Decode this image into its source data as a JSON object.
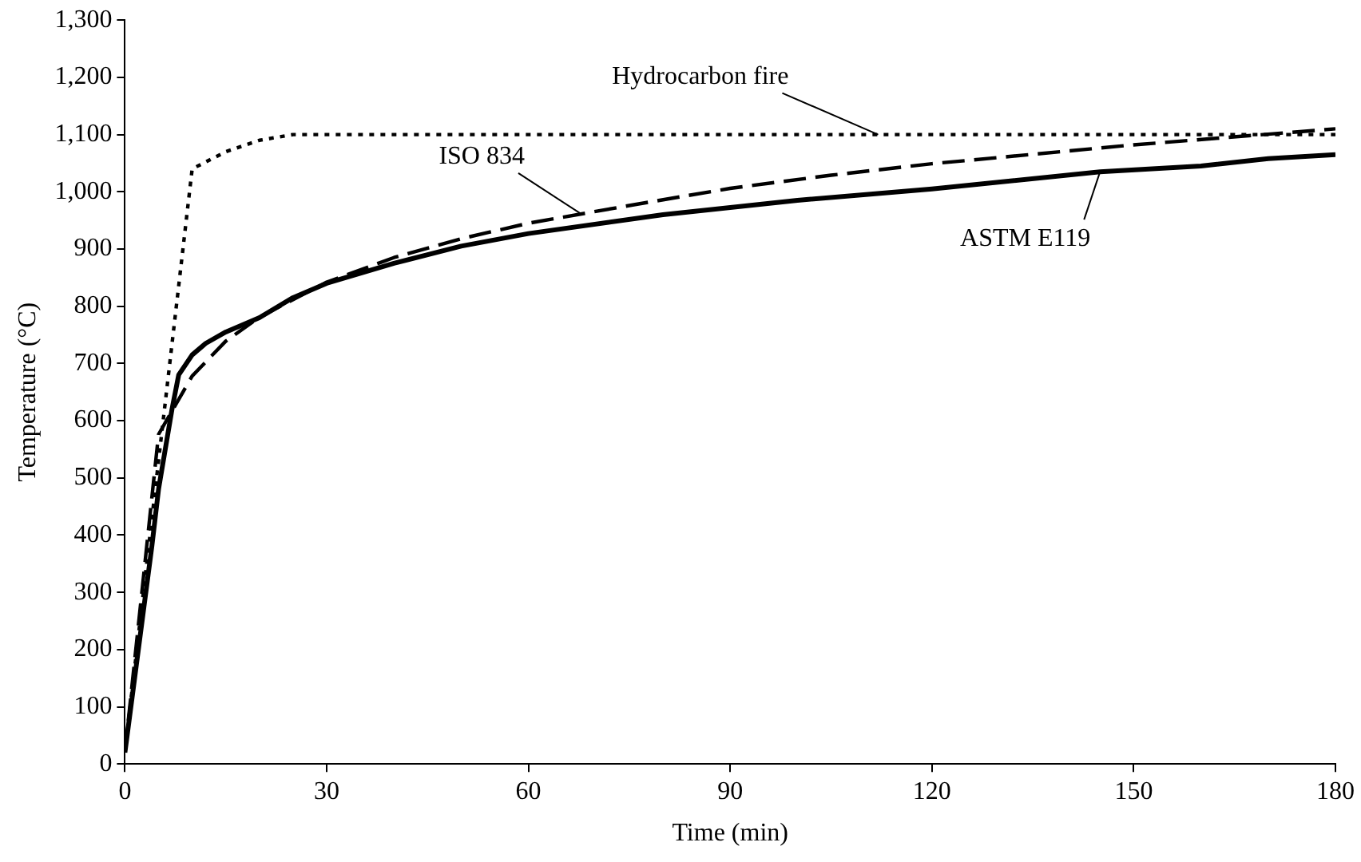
{
  "chart_data": {
    "type": "line",
    "xlabel": "Time (min)",
    "ylabel": "Temperature (°C)",
    "xlim": [
      0,
      180
    ],
    "xticks": [
      0,
      30,
      60,
      90,
      120,
      150,
      180
    ],
    "ylim": [
      0,
      1300
    ],
    "yticks": [
      0,
      100,
      200,
      300,
      400,
      500,
      600,
      700,
      800,
      900,
      {
        "value": 1000,
        "label": "1,000"
      },
      {
        "value": 1100,
        "label": "1,100"
      },
      {
        "value": 1200,
        "label": "1,200"
      },
      {
        "value": 1300,
        "label": "1,300"
      }
    ],
    "grid": false,
    "legend": false,
    "marker": "none",
    "series": [
      {
        "color": "#000000",
        "line_style": "dotted",
        "x": [
          0,
          10,
          15,
          20,
          25,
          180
        ],
        "values": [
          20,
          1040,
          1070,
          1090,
          1100,
          1100
        ]
      },
      {
        "color": "#000000",
        "line_style": "dashed",
        "x": [
          0,
          5,
          10,
          15,
          20,
          30,
          40,
          50,
          60,
          75,
          90,
          105,
          120,
          150,
          180
        ],
        "values": [
          20,
          576,
          678,
          739,
          781,
          842,
          885,
          918,
          945,
          976,
          1006,
          1029,
          1049,
          1082,
          1110
        ]
      },
      {
        "color": "#000000",
        "line_style": "solid",
        "x": [
          0,
          2,
          4,
          5,
          7,
          8,
          10,
          12,
          15,
          20,
          25,
          30,
          40,
          50,
          60,
          80,
          100,
          120,
          145,
          160,
          170,
          180
        ],
        "values": [
          20,
          200,
          380,
          480,
          620,
          680,
          715,
          735,
          755,
          780,
          815,
          840,
          875,
          905,
          927,
          960,
          985,
          1005,
          1035,
          1045,
          1058,
          1065
        ]
      }
    ],
    "annotations": [
      {
        "text": "Hydrocarbon fire",
        "x": 112,
        "y": 1100
      },
      {
        "text": "ISO 834",
        "x": 68,
        "y": 960
      },
      {
        "text": "ASTM E119",
        "x": 145,
        "y": 1035
      }
    ]
  }
}
